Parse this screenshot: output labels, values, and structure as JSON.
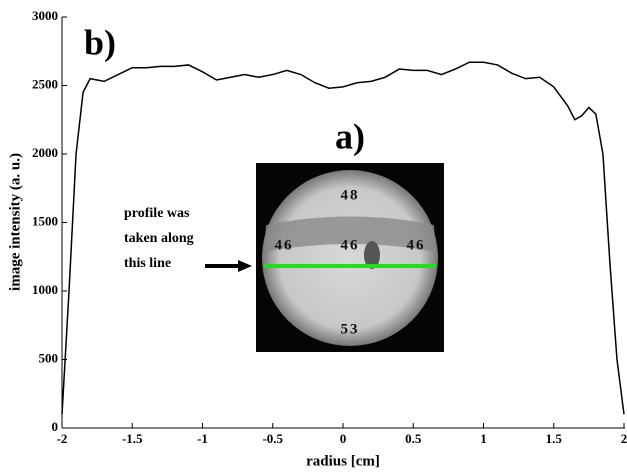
{
  "chart_data": {
    "type": "line",
    "xlabel": "radius [cm]",
    "ylabel": "image intensity (a. u.)",
    "annotations": [
      "a)",
      "b)"
    ],
    "inset_labels": [
      "48",
      "46",
      "46",
      "46",
      "53"
    ],
    "inset_caption": [
      "profile was",
      "taken along",
      "this line"
    ],
    "x": [
      -2,
      -1.95,
      -1.9,
      -1.85,
      -1.8,
      -1.7,
      -1.6,
      -1.5,
      -1.4,
      -1.3,
      -1.2,
      -1.1,
      -1.0,
      -0.9,
      -0.8,
      -0.7,
      -0.6,
      -0.5,
      -0.4,
      -0.3,
      -0.2,
      -0.1,
      0,
      0.1,
      0.2,
      0.3,
      0.4,
      0.5,
      0.6,
      0.7,
      0.8,
      0.9,
      1.0,
      1.1,
      1.2,
      1.3,
      1.4,
      1.5,
      1.6,
      1.65,
      1.7,
      1.75,
      1.8,
      1.85,
      1.9,
      1.95,
      2.0
    ],
    "values": [
      100,
      1000,
      2000,
      2450,
      2550,
      2530,
      2580,
      2630,
      2630,
      2640,
      2640,
      2650,
      2600,
      2540,
      2560,
      2580,
      2560,
      2580,
      2610,
      2580,
      2520,
      2480,
      2490,
      2520,
      2530,
      2560,
      2620,
      2610,
      2610,
      2580,
      2620,
      2670,
      2670,
      2650,
      2590,
      2550,
      2560,
      2490,
      2350,
      2250,
      2280,
      2340,
      2290,
      2000,
      1200,
      500,
      100
    ],
    "color": "#000000",
    "xlim": [
      -2,
      2
    ],
    "ylim": [
      0,
      3000
    ],
    "xticks": [
      -2,
      -1.5,
      -1,
      -0.5,
      0,
      0.5,
      1,
      1.5,
      2
    ],
    "yticks": [
      0,
      500,
      1000,
      1500,
      2000,
      2500,
      3000
    ],
    "grid": false
  }
}
